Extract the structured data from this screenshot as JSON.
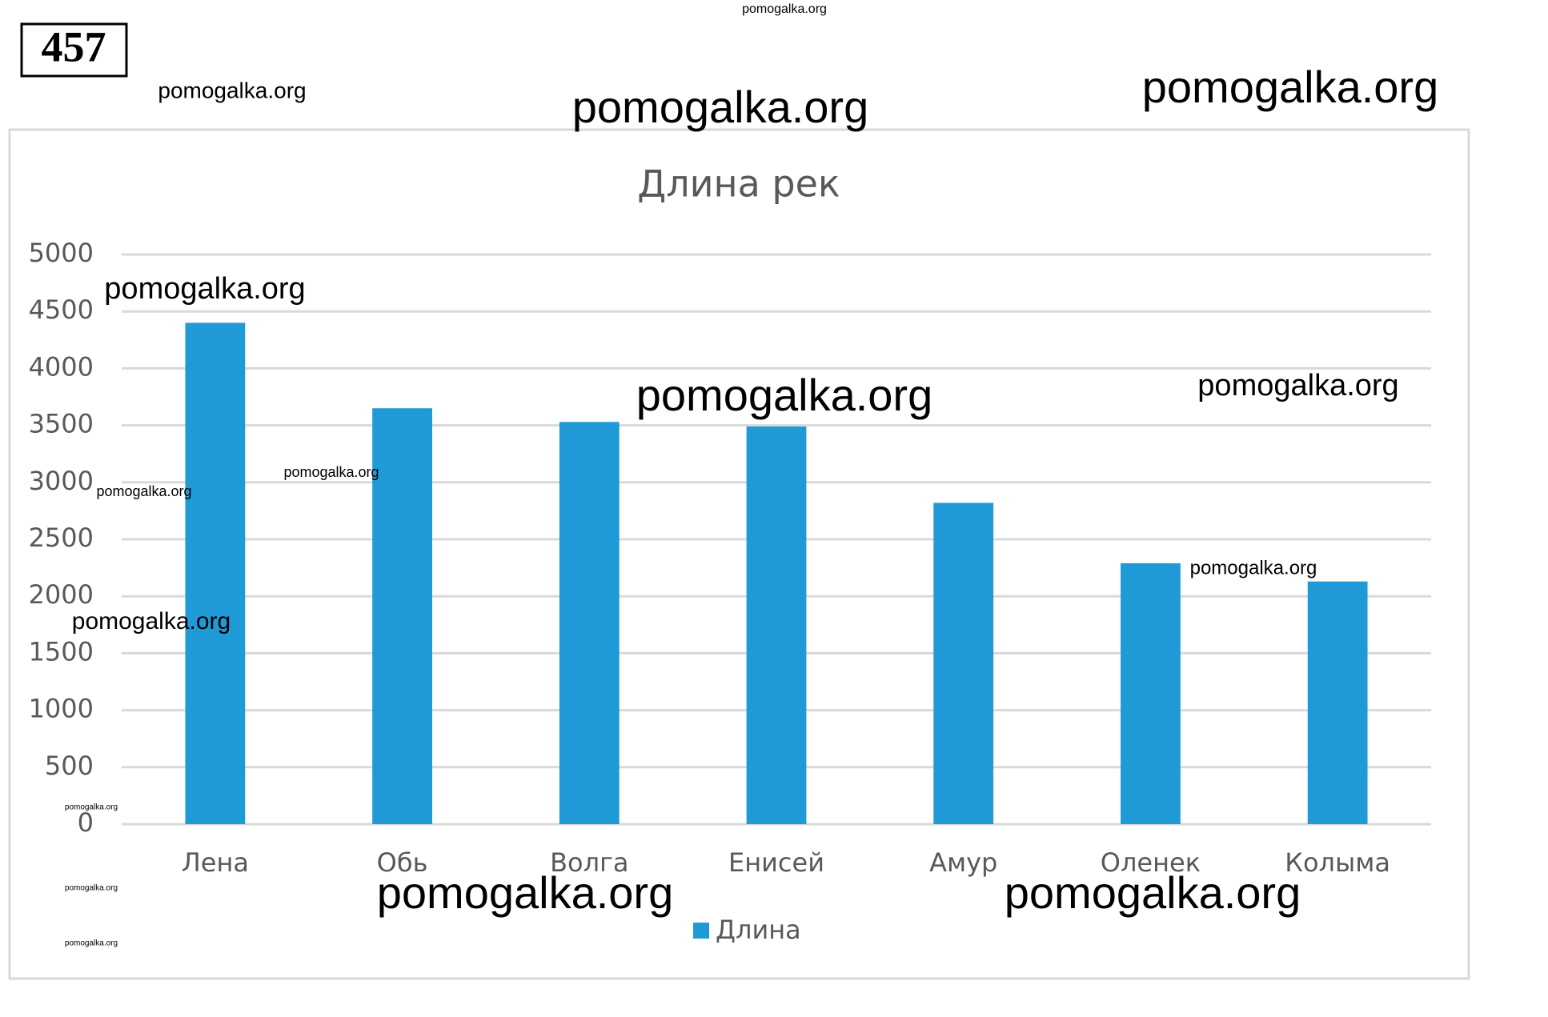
{
  "problem_number": "457",
  "watermarks": [
    "pomogalka.org",
    "pomogalka.org",
    "pomogalka.org",
    "pomogalka.org",
    "pomogalka.org",
    "pomogalka.org",
    "pomogalka.org",
    "pomogalka.org",
    "pomogalka.org",
    "pomogalka.org",
    "pomogalka.org",
    "pomogalka.org",
    "pomogalka.org",
    "pomogalka.org",
    "pomogalka.org",
    "pomogalka.org"
  ],
  "chart_data": {
    "type": "bar",
    "title": "Длина рек",
    "categories": [
      "Лена",
      "Обь",
      "Волга",
      "Енисей",
      "Амур",
      "Оленек",
      "Колыма"
    ],
    "series": [
      {
        "name": "Длина",
        "color": "#1f9ad6",
        "values": [
          4400,
          3650,
          3530,
          3490,
          2820,
          2290,
          2130
        ]
      }
    ],
    "ylim": [
      0,
      5000
    ],
    "yticks": [
      0,
      500,
      1000,
      1500,
      2000,
      2500,
      3000,
      3500,
      4000,
      4500,
      5000
    ],
    "grid": true,
    "legend": "bottom"
  }
}
